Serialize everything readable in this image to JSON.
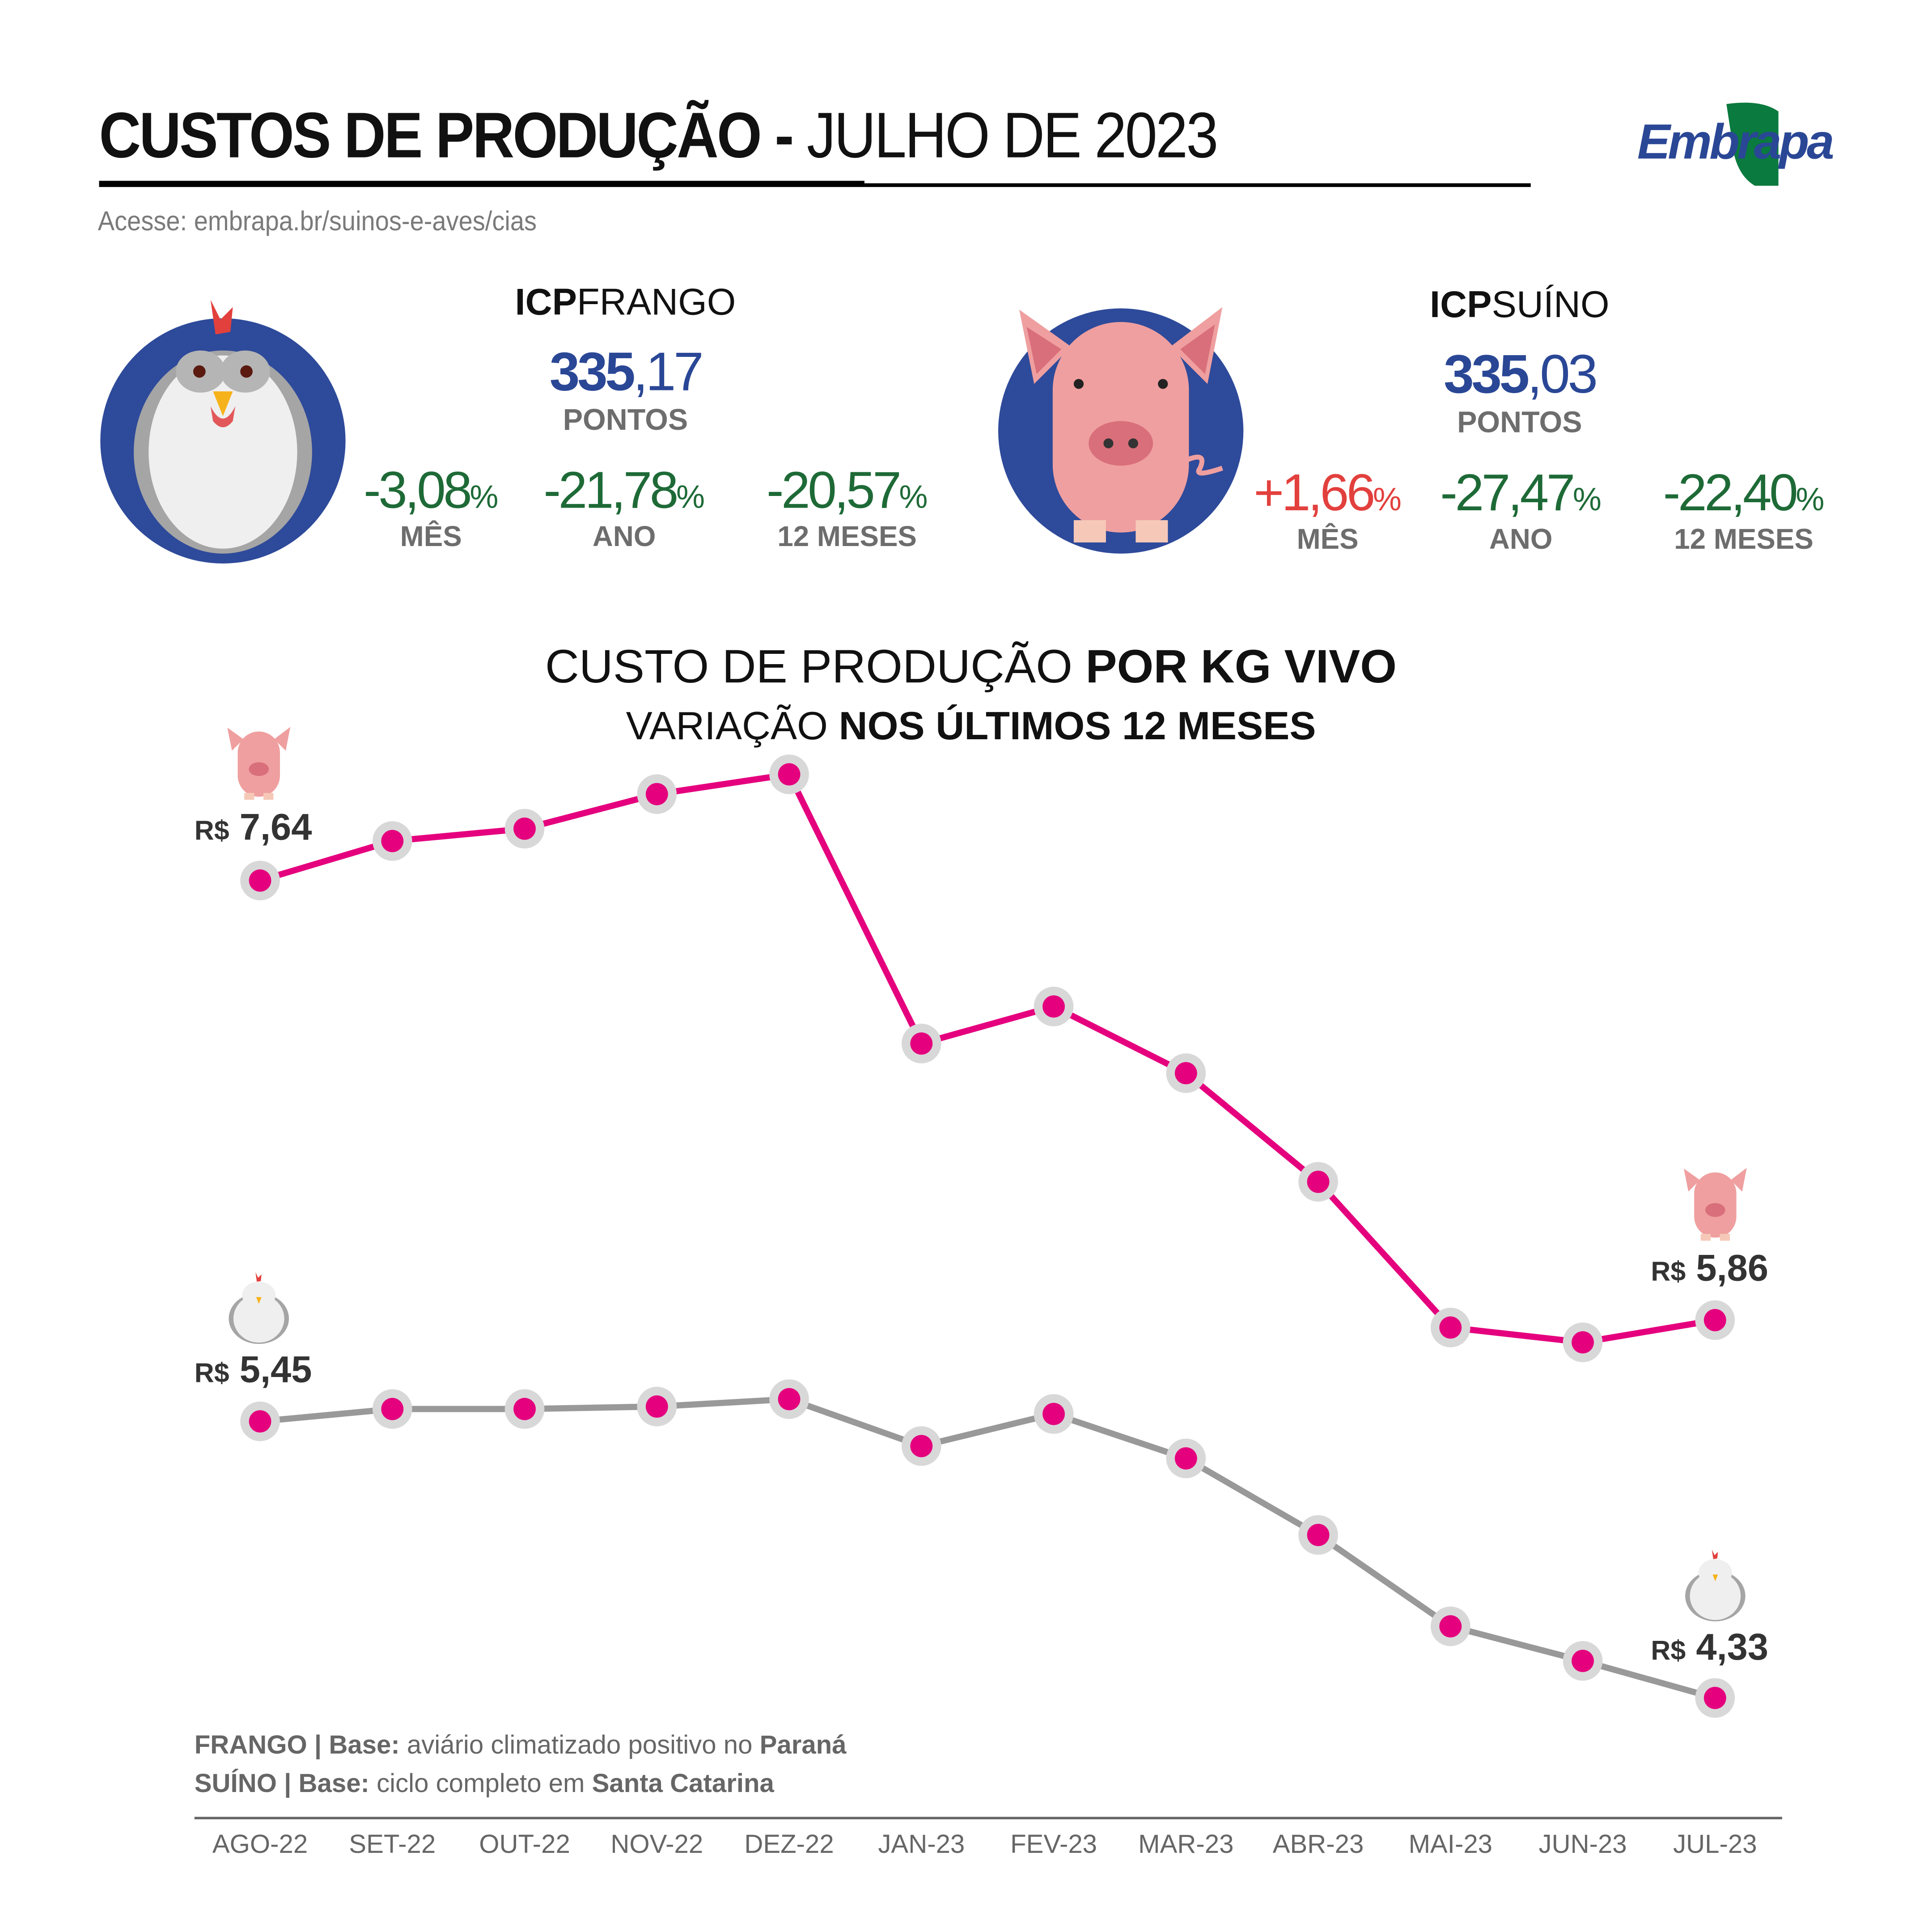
{
  "header": {
    "title_bold": "CUSTOS DE PRODUÇÃO -",
    "title_light": "JULHO DE 2023",
    "url": "Acesse: embrapa.br/suinos-e-aves/cias",
    "logo_text": "Embrapa"
  },
  "colors": {
    "blue": "#2a4796",
    "green": "#1e6a37",
    "red": "#e2403d",
    "pig_line": "#e5007e",
    "chicken_line": "#999999",
    "marker": "#e5007e",
    "marker_ring": "#d8d8d8"
  },
  "frango": {
    "icp_bold": "ICP",
    "icp_light": "FRANGO",
    "value_int": "335",
    "value_dec": ",17",
    "unit": "PONTOS",
    "changes": [
      {
        "value": "-3,08",
        "pct": "%",
        "label": "MÊS"
      },
      {
        "value": "-21,78",
        "pct": "%",
        "label": "ANO"
      },
      {
        "value": "-20,57",
        "pct": "%",
        "label": "12 MESES"
      }
    ]
  },
  "suino": {
    "icp_bold": "ICP",
    "icp_light": "SUÍNO",
    "value_int": "335",
    "value_dec": ",03",
    "unit": "PONTOS",
    "changes": [
      {
        "value": "+1,66",
        "pct": "%",
        "label": "MÊS"
      },
      {
        "value": "-27,47",
        "pct": "%",
        "label": "ANO"
      },
      {
        "value": "-22,40",
        "pct": "%",
        "label": "12 MESES"
      }
    ]
  },
  "chart_data": {
    "type": "line",
    "title_light": "CUSTO DE PRODUÇÃO",
    "title_bold": "POR KG VIVO",
    "subtitle_light": "VARIAÇÃO",
    "subtitle_bold": "NOS ÚLTIMOS 12 MESES",
    "categories": [
      "AGO-22",
      "SET-22",
      "OUT-22",
      "NOV-22",
      "DEZ-22",
      "JAN-23",
      "FEV-23",
      "MAR-23",
      "ABR-23",
      "MAI-23",
      "JUN-23",
      "JUL-23"
    ],
    "series": [
      {
        "key": "suino",
        "values": [
          7.64,
          7.8,
          7.85,
          7.99,
          8.07,
          6.98,
          7.13,
          6.86,
          6.42,
          5.83,
          5.77,
          5.86
        ]
      },
      {
        "key": "frango",
        "values": [
          5.45,
          5.5,
          5.5,
          5.51,
          5.54,
          5.35,
          5.48,
          5.3,
          4.99,
          4.62,
          4.48,
          4.33
        ]
      }
    ],
    "labels": {
      "currency": "R$",
      "suino_start": "7,64",
      "suino_end": "5,86",
      "frango_start": "5,45",
      "frango_end": "4,33"
    },
    "grid": false,
    "notes": [
      {
        "bold1": "FRANGO | Base:",
        "light": " aviário climatizado positivo no ",
        "bold2": "Paraná"
      },
      {
        "bold1": "SUÍNO | Base:",
        "light": " ciclo completo em ",
        "bold2": "Santa Catarina"
      }
    ]
  }
}
